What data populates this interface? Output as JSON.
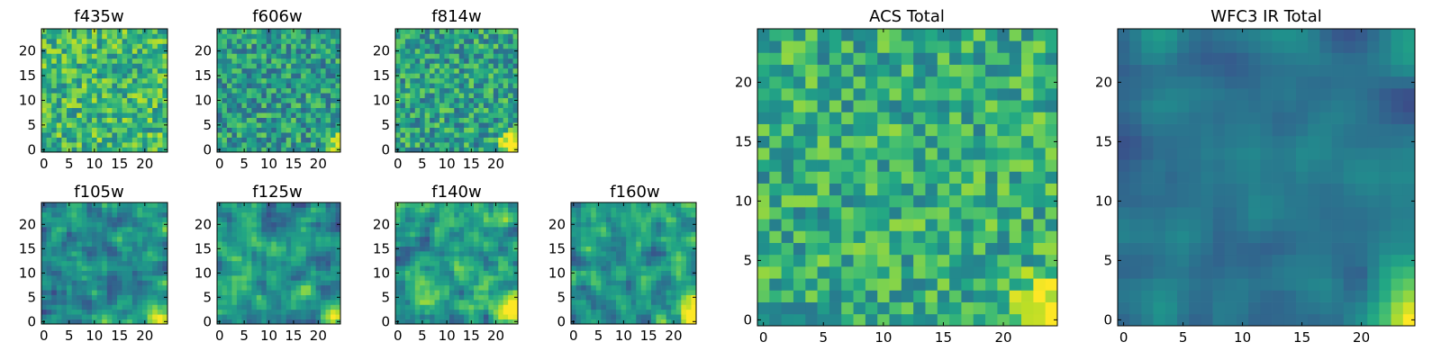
{
  "chart_data": [
    {
      "type": "heatmap",
      "title": "f435w",
      "grid": 25,
      "xticks": [
        "0",
        "5",
        "10",
        "15",
        "20"
      ],
      "yticks": [
        "0",
        "5",
        "10",
        "15",
        "20"
      ],
      "xlim": [
        -0.5,
        24.5
      ],
      "ylim": [
        -0.5,
        24.5
      ],
      "colormap": "viridis",
      "seed": 11,
      "character": "noisy-bright",
      "mean": 0.66,
      "spread": 0.24,
      "smoothing": 0,
      "hotspot": {
        "x": 23,
        "y": 1,
        "strength": 0.15,
        "radius": 3
      },
      "legend": "none"
    },
    {
      "type": "heatmap",
      "title": "f606w",
      "grid": 25,
      "xticks": [
        "0",
        "5",
        "10",
        "15",
        "20"
      ],
      "yticks": [
        "0",
        "5",
        "10",
        "15",
        "20"
      ],
      "xlim": [
        -0.5,
        24.5
      ],
      "ylim": [
        -0.5,
        24.5
      ],
      "colormap": "viridis",
      "seed": 23,
      "character": "noisy",
      "mean": 0.55,
      "spread": 0.24,
      "smoothing": 0,
      "hotspot": {
        "x": 23.5,
        "y": 1.5,
        "strength": 0.45,
        "radius": 3
      },
      "legend": "none"
    },
    {
      "type": "heatmap",
      "title": "f814w",
      "grid": 25,
      "xticks": [
        "0",
        "5",
        "10",
        "15",
        "20"
      ],
      "yticks": [
        "0",
        "5",
        "10",
        "15",
        "20"
      ],
      "xlim": [
        -0.5,
        24.5
      ],
      "ylim": [
        -0.5,
        24.5
      ],
      "colormap": "viridis",
      "seed": 37,
      "character": "noisy",
      "mean": 0.57,
      "spread": 0.24,
      "smoothing": 0,
      "hotspot": {
        "x": 23.5,
        "y": 1,
        "strength": 0.6,
        "radius": 4
      },
      "legend": "none"
    },
    {
      "type": "heatmap",
      "title": "f105w",
      "grid": 25,
      "xticks": [
        "0",
        "5",
        "10",
        "15",
        "20"
      ],
      "yticks": [
        "0",
        "5",
        "10",
        "15",
        "20"
      ],
      "xlim": [
        -0.5,
        24.5
      ],
      "ylim": [
        -0.5,
        24.5
      ],
      "colormap": "viridis",
      "seed": 41,
      "character": "smooth",
      "mean": 0.52,
      "spread": 0.3,
      "smoothing": 1,
      "hotspot": {
        "x": 24,
        "y": 0.5,
        "strength": 0.6,
        "radius": 4.5
      },
      "legend": "none"
    },
    {
      "type": "heatmap",
      "title": "f125w",
      "grid": 25,
      "xticks": [
        "0",
        "5",
        "10",
        "15",
        "20"
      ],
      "yticks": [
        "0",
        "5",
        "10",
        "15",
        "20"
      ],
      "xlim": [
        -0.5,
        24.5
      ],
      "ylim": [
        -0.5,
        24.5
      ],
      "colormap": "viridis",
      "seed": 53,
      "character": "smooth",
      "mean": 0.5,
      "spread": 0.32,
      "smoothing": 1,
      "hotspot": {
        "x": 24,
        "y": 1,
        "strength": 0.65,
        "radius": 5
      },
      "legend": "none"
    },
    {
      "type": "heatmap",
      "title": "f140w",
      "grid": 25,
      "xticks": [
        "0",
        "5",
        "10",
        "15",
        "20"
      ],
      "yticks": [
        "0",
        "5",
        "10",
        "15",
        "20"
      ],
      "xlim": [
        -0.5,
        24.5
      ],
      "ylim": [
        -0.5,
        24.5
      ],
      "colormap": "viridis",
      "seed": 67,
      "character": "smooth",
      "mean": 0.55,
      "spread": 0.32,
      "smoothing": 1,
      "hotspot": {
        "x": 23.5,
        "y": 2,
        "strength": 0.6,
        "radius": 6
      },
      "legend": "none"
    },
    {
      "type": "heatmap",
      "title": "f160w",
      "grid": 25,
      "xticks": [
        "0",
        "5",
        "10",
        "15",
        "20"
      ],
      "yticks": [
        "0",
        "5",
        "10",
        "15",
        "20"
      ],
      "xlim": [
        -0.5,
        24.5
      ],
      "ylim": [
        -0.5,
        24.5
      ],
      "colormap": "viridis",
      "seed": 79,
      "character": "smooth",
      "mean": 0.52,
      "spread": 0.32,
      "smoothing": 1,
      "hotspot": {
        "x": 24,
        "y": 1,
        "strength": 0.7,
        "radius": 5
      },
      "legend": "none"
    },
    {
      "type": "heatmap",
      "title": "ACS Total",
      "grid": 25,
      "xticks": [
        "0",
        "5",
        "10",
        "15",
        "20"
      ],
      "yticks": [
        "0",
        "5",
        "10",
        "15",
        "20"
      ],
      "xlim": [
        -0.5,
        24.5
      ],
      "ylim": [
        -0.5,
        24.5
      ],
      "colormap": "viridis",
      "seed": 97,
      "character": "noisy-bright",
      "mean": 0.62,
      "spread": 0.22,
      "smoothing": 0,
      "hotspot": {
        "x": 24,
        "y": 0.5,
        "strength": 0.55,
        "radius": 5
      },
      "legend": "none"
    },
    {
      "type": "heatmap",
      "title": "WFC3 IR Total",
      "grid": 25,
      "xticks": [
        "0",
        "5",
        "10",
        "15",
        "20"
      ],
      "yticks": [
        "0",
        "5",
        "10",
        "15",
        "20"
      ],
      "xlim": [
        -0.5,
        24.5
      ],
      "ylim": [
        -0.5,
        24.5
      ],
      "colormap": "viridis",
      "seed": 113,
      "character": "smooth",
      "mean": 0.4,
      "spread": 0.16,
      "smoothing": 2,
      "hotspot": {
        "x": 24.5,
        "y": 0,
        "strength": 0.7,
        "radius": 6
      },
      "legend": "none"
    }
  ]
}
